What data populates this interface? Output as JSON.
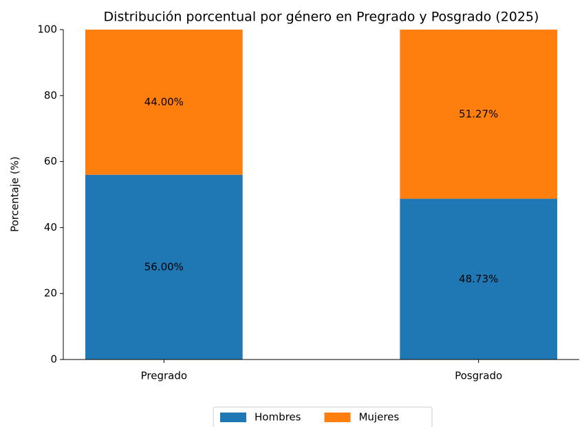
{
  "chart_data": {
    "type": "stacked_bar",
    "title": "Distribución porcentual por género en Pregrado y Posgrado (2025)",
    "y_label": "Porcentaje (%)",
    "categories": [
      "Pregrado",
      "Posgrado"
    ],
    "series": [
      {
        "name": "Hombres",
        "color": "#1f77b4",
        "values": [
          56.0,
          48.73
        ],
        "value_labels": [
          "56.00%",
          "48.73%"
        ]
      },
      {
        "name": "Mujeres",
        "color": "#ff7f0e",
        "values": [
          44.0,
          51.27
        ],
        "value_labels": [
          "44.00%",
          "51.27%"
        ]
      }
    ],
    "ylim": [
      0,
      100
    ],
    "yticks": [
      0,
      20,
      40,
      60,
      80,
      100
    ],
    "legend": "bottom"
  }
}
